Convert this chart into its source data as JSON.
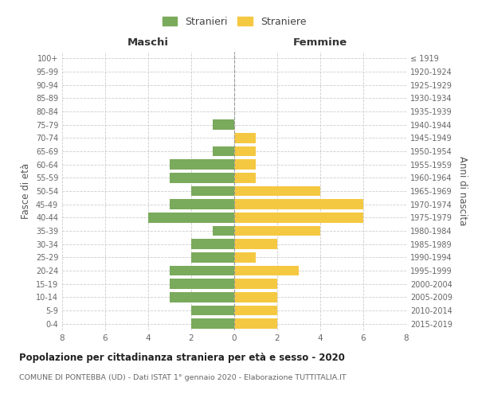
{
  "age_groups": [
    "0-4",
    "5-9",
    "10-14",
    "15-19",
    "20-24",
    "25-29",
    "30-34",
    "35-39",
    "40-44",
    "45-49",
    "50-54",
    "55-59",
    "60-64",
    "65-69",
    "70-74",
    "75-79",
    "80-84",
    "85-89",
    "90-94",
    "95-99",
    "100+"
  ],
  "birth_years": [
    "2015-2019",
    "2010-2014",
    "2005-2009",
    "2000-2004",
    "1995-1999",
    "1990-1994",
    "1985-1989",
    "1980-1984",
    "1975-1979",
    "1970-1974",
    "1965-1969",
    "1960-1964",
    "1955-1959",
    "1950-1954",
    "1945-1949",
    "1940-1944",
    "1935-1939",
    "1930-1934",
    "1925-1929",
    "1920-1924",
    "≤ 1919"
  ],
  "maschi": [
    2,
    2,
    3,
    3,
    3,
    2,
    2,
    1,
    4,
    3,
    2,
    3,
    3,
    1,
    0,
    1,
    0,
    0,
    0,
    0,
    0
  ],
  "femmine": [
    2,
    2,
    2,
    2,
    3,
    1,
    2,
    4,
    6,
    6,
    4,
    1,
    1,
    1,
    1,
    0,
    0,
    0,
    0,
    0,
    0
  ],
  "color_maschi": "#7aaa5c",
  "color_femmine": "#f5c842",
  "title": "Popolazione per cittadinanza straniera per età e sesso - 2020",
  "subtitle": "COMUNE DI PONTEBBA (UD) - Dati ISTAT 1° gennaio 2020 - Elaborazione TUTTITALIA.IT",
  "xlabel_left": "Maschi",
  "xlabel_right": "Femmine",
  "ylabel_left": "Fasce di età",
  "ylabel_right": "Anni di nascita",
  "legend_maschi": "Stranieri",
  "legend_femmine": "Straniere",
  "xlim": 8,
  "background_color": "#ffffff",
  "grid_color": "#cccccc"
}
